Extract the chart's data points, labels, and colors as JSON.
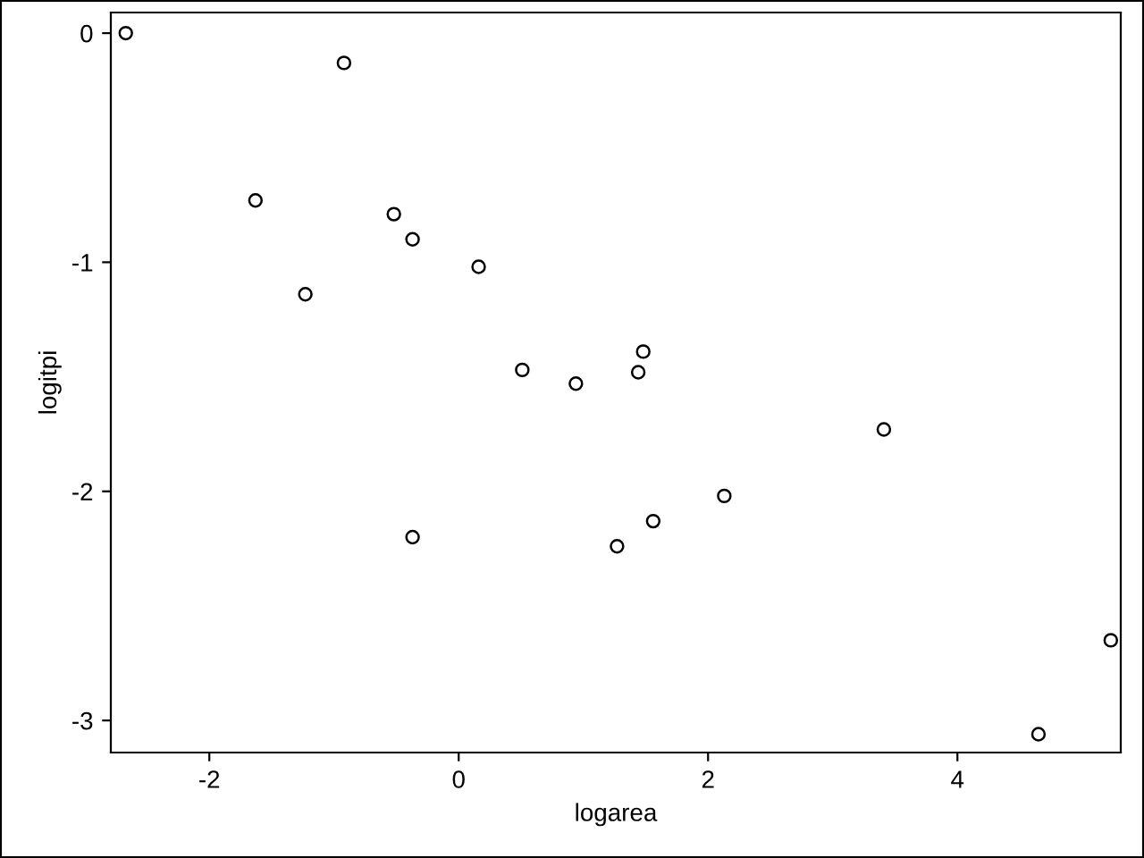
{
  "chart_data": {
    "type": "scatter",
    "xlabel": "logarea",
    "ylabel": "logitpi",
    "x": [
      -2.67,
      -0.92,
      -1.63,
      -0.52,
      -0.37,
      -1.23,
      0.16,
      0.51,
      0.94,
      1.48,
      1.44,
      3.41,
      2.13,
      1.56,
      1.27,
      -0.37,
      5.23,
      4.65
    ],
    "series": [
      {
        "color": "#000000",
        "values": [
          0,
          -0.13,
          -0.73,
          -0.79,
          -0.9,
          -1.14,
          -1.02,
          -1.47,
          -1.53,
          -1.39,
          -1.48,
          -1.73,
          -2.02,
          -2.13,
          -2.24,
          -2.2,
          -2.65,
          -3.06
        ]
      }
    ],
    "xlim": [
      -2.79,
      5.31
    ],
    "ylim": [
      -3.14,
      0.09
    ],
    "xticks": [
      -2,
      0,
      2,
      4
    ],
    "yticks": [
      -3,
      -2,
      -1,
      0
    ],
    "marker": "circle",
    "grid": false,
    "legend": false
  }
}
